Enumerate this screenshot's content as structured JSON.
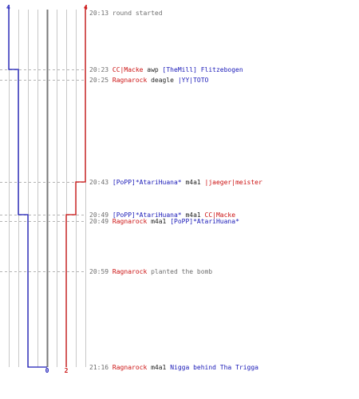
{
  "colors": {
    "team_a": "#1a1ab8",
    "team_b": "#cc1111",
    "grid": "#c8c8c8",
    "center": "#7a7a7a",
    "guide": "#b4b4b4"
  },
  "chart_data": {
    "type": "line",
    "xlim": [
      0,
      4
    ],
    "team_a_start": "4",
    "team_b_start": "4",
    "team_a_end": "0",
    "team_b_end": "2",
    "series": [
      {
        "values": [
          4,
          3,
          3,
          3,
          2,
          2,
          2,
          0
        ]
      },
      {
        "values": [
          4,
          4,
          4,
          3,
          2,
          2,
          2,
          2
        ]
      }
    ]
  },
  "events": [
    {
      "time": "20:13",
      "parts": [
        {
          "text": "round started",
          "style": "plain"
        }
      ]
    },
    {
      "time": "20:23",
      "parts": [
        {
          "text": "CC|Macke",
          "style": "red"
        },
        {
          "text": " awp ",
          "style": "dark"
        },
        {
          "text": "[TheMill] Flitzebogen",
          "style": "blue"
        }
      ]
    },
    {
      "time": "20:25",
      "parts": [
        {
          "text": "Ragnarock",
          "style": "red"
        },
        {
          "text": " deagle ",
          "style": "dark"
        },
        {
          "text": "|YY|TOTO",
          "style": "blue"
        }
      ]
    },
    {
      "time": "20:43",
      "parts": [
        {
          "text": "[PoPP]*AtariHuana*",
          "style": "blue"
        },
        {
          "text": " m4a1 ",
          "style": "dark"
        },
        {
          "text": "|jaeger|meister",
          "style": "red"
        }
      ]
    },
    {
      "time": "20:49",
      "parts": [
        {
          "text": "[PoPP]*AtariHuana*",
          "style": "blue"
        },
        {
          "text": " m4a1 ",
          "style": "dark"
        },
        {
          "text": "CC|Macke",
          "style": "red"
        }
      ]
    },
    {
      "time": "20:49",
      "parts": [
        {
          "text": "Ragnarock",
          "style": "red"
        },
        {
          "text": " m4a1 ",
          "style": "dark"
        },
        {
          "text": "[PoPP]*AtariHuana*",
          "style": "blue"
        }
      ]
    },
    {
      "time": "20:59",
      "parts": [
        {
          "text": "Ragnarock",
          "style": "red"
        },
        {
          "text": " planted the bomb",
          "style": "plain"
        }
      ]
    },
    {
      "time": "21:16",
      "parts": [
        {
          "text": "Ragnarock",
          "style": "red"
        },
        {
          "text": " m4a1 ",
          "style": "dark"
        },
        {
          "text": "Nigga behind Tha Trigga",
          "style": "blue"
        }
      ]
    }
  ]
}
